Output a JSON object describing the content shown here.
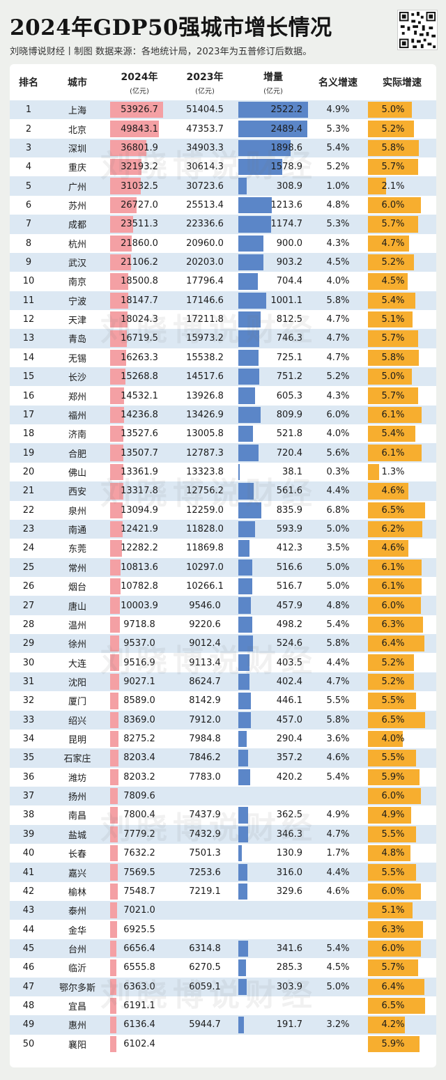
{
  "title": "2024年GDP50强城市增长情况",
  "subtitle": "刘晓博说财经丨制图   数据来源：各地统计局，2023年为五普修订后数据。",
  "watermark_text": "刘晓博说财经",
  "colors": {
    "gdp_bar": "#f4a0a4",
    "increase_bar": "#5b86c8",
    "real_bar": "#f7ae2f",
    "alt_row": "#dce8f3"
  },
  "headers": {
    "rank": "排名",
    "city": "城市",
    "gdp2024": "2024年",
    "gdp2024_unit": "(亿元)",
    "gdp2023": "2023年",
    "gdp2023_unit": "(亿元)",
    "increase": "增量",
    "increase_unit": "(亿元)",
    "nominal": "名义增速",
    "real": "实际增速"
  },
  "chart_data": {
    "type": "table",
    "title": "2024年GDP50强城市增长情况",
    "columns": [
      "排名",
      "城市",
      "2024年(亿元)",
      "2023年(亿元)",
      "增量(亿元)",
      "名义增速",
      "实际增速"
    ],
    "rows": [
      {
        "rank": "1",
        "city": "上海",
        "gdp2024": "53926.7",
        "gdp2023": "51404.5",
        "increase": "2522.2",
        "nominal": "4.9%",
        "real": "5.0%"
      },
      {
        "rank": "2",
        "city": "北京",
        "gdp2024": "49843.1",
        "gdp2023": "47353.7",
        "increase": "2489.4",
        "nominal": "5.3%",
        "real": "5.2%"
      },
      {
        "rank": "3",
        "city": "深圳",
        "gdp2024": "36801.9",
        "gdp2023": "34903.3",
        "increase": "1898.6",
        "nominal": "5.4%",
        "real": "5.8%"
      },
      {
        "rank": "4",
        "city": "重庆",
        "gdp2024": "32193.2",
        "gdp2023": "30614.3",
        "increase": "1578.9",
        "nominal": "5.2%",
        "real": "5.7%"
      },
      {
        "rank": "5",
        "city": "广州",
        "gdp2024": "31032.5",
        "gdp2023": "30723.6",
        "increase": "308.9",
        "nominal": "1.0%",
        "real": "2.1%"
      },
      {
        "rank": "6",
        "city": "苏州",
        "gdp2024": "26727.0",
        "gdp2023": "25513.4",
        "increase": "1213.6",
        "nominal": "4.8%",
        "real": "6.0%"
      },
      {
        "rank": "7",
        "city": "成都",
        "gdp2024": "23511.3",
        "gdp2023": "22336.6",
        "increase": "1174.7",
        "nominal": "5.3%",
        "real": "5.7%"
      },
      {
        "rank": "8",
        "city": "杭州",
        "gdp2024": "21860.0",
        "gdp2023": "20960.0",
        "increase": "900.0",
        "nominal": "4.3%",
        "real": "4.7%"
      },
      {
        "rank": "9",
        "city": "武汉",
        "gdp2024": "21106.2",
        "gdp2023": "20203.0",
        "increase": "903.2",
        "nominal": "4.5%",
        "real": "5.2%"
      },
      {
        "rank": "10",
        "city": "南京",
        "gdp2024": "18500.8",
        "gdp2023": "17796.4",
        "increase": "704.4",
        "nominal": "4.0%",
        "real": "4.5%"
      },
      {
        "rank": "11",
        "city": "宁波",
        "gdp2024": "18147.7",
        "gdp2023": "17146.6",
        "increase": "1001.1",
        "nominal": "5.8%",
        "real": "5.4%"
      },
      {
        "rank": "12",
        "city": "天津",
        "gdp2024": "18024.3",
        "gdp2023": "17211.8",
        "increase": "812.5",
        "nominal": "4.7%",
        "real": "5.1%"
      },
      {
        "rank": "13",
        "city": "青岛",
        "gdp2024": "16719.5",
        "gdp2023": "15973.2",
        "increase": "746.3",
        "nominal": "4.7%",
        "real": "5.7%"
      },
      {
        "rank": "14",
        "city": "无锡",
        "gdp2024": "16263.3",
        "gdp2023": "15538.2",
        "increase": "725.1",
        "nominal": "4.7%",
        "real": "5.8%"
      },
      {
        "rank": "15",
        "city": "长沙",
        "gdp2024": "15268.8",
        "gdp2023": "14517.6",
        "increase": "751.2",
        "nominal": "5.2%",
        "real": "5.0%"
      },
      {
        "rank": "16",
        "city": "郑州",
        "gdp2024": "14532.1",
        "gdp2023": "13926.8",
        "increase": "605.3",
        "nominal": "4.3%",
        "real": "5.7%"
      },
      {
        "rank": "17",
        "city": "福州",
        "gdp2024": "14236.8",
        "gdp2023": "13426.9",
        "increase": "809.9",
        "nominal": "6.0%",
        "real": "6.1%"
      },
      {
        "rank": "18",
        "city": "济南",
        "gdp2024": "13527.6",
        "gdp2023": "13005.8",
        "increase": "521.8",
        "nominal": "4.0%",
        "real": "5.4%"
      },
      {
        "rank": "19",
        "city": "合肥",
        "gdp2024": "13507.7",
        "gdp2023": "12787.3",
        "increase": "720.4",
        "nominal": "5.6%",
        "real": "6.1%"
      },
      {
        "rank": "20",
        "city": "佛山",
        "gdp2024": "13361.9",
        "gdp2023": "13323.8",
        "increase": "38.1",
        "nominal": "0.3%",
        "real": "1.3%"
      },
      {
        "rank": "21",
        "city": "西安",
        "gdp2024": "13317.8",
        "gdp2023": "12756.2",
        "increase": "561.6",
        "nominal": "4.4%",
        "real": "4.6%"
      },
      {
        "rank": "22",
        "city": "泉州",
        "gdp2024": "13094.9",
        "gdp2023": "12259.0",
        "increase": "835.9",
        "nominal": "6.8%",
        "real": "6.5%"
      },
      {
        "rank": "23",
        "city": "南通",
        "gdp2024": "12421.9",
        "gdp2023": "11828.0",
        "increase": "593.9",
        "nominal": "5.0%",
        "real": "6.2%"
      },
      {
        "rank": "24",
        "city": "东莞",
        "gdp2024": "12282.2",
        "gdp2023": "11869.8",
        "increase": "412.3",
        "nominal": "3.5%",
        "real": "4.6%"
      },
      {
        "rank": "25",
        "city": "常州",
        "gdp2024": "10813.6",
        "gdp2023": "10297.0",
        "increase": "516.6",
        "nominal": "5.0%",
        "real": "6.1%"
      },
      {
        "rank": "26",
        "city": "烟台",
        "gdp2024": "10782.8",
        "gdp2023": "10266.1",
        "increase": "516.7",
        "nominal": "5.0%",
        "real": "6.1%"
      },
      {
        "rank": "27",
        "city": "唐山",
        "gdp2024": "10003.9",
        "gdp2023": "9546.0",
        "increase": "457.9",
        "nominal": "4.8%",
        "real": "6.0%"
      },
      {
        "rank": "28",
        "city": "温州",
        "gdp2024": "9718.8",
        "gdp2023": "9220.6",
        "increase": "498.2",
        "nominal": "5.4%",
        "real": "6.3%"
      },
      {
        "rank": "29",
        "city": "徐州",
        "gdp2024": "9537.0",
        "gdp2023": "9012.4",
        "increase": "524.6",
        "nominal": "5.8%",
        "real": "6.4%"
      },
      {
        "rank": "30",
        "city": "大连",
        "gdp2024": "9516.9",
        "gdp2023": "9113.4",
        "increase": "403.5",
        "nominal": "4.4%",
        "real": "5.2%"
      },
      {
        "rank": "31",
        "city": "沈阳",
        "gdp2024": "9027.1",
        "gdp2023": "8624.7",
        "increase": "402.4",
        "nominal": "4.7%",
        "real": "5.2%"
      },
      {
        "rank": "32",
        "city": "厦门",
        "gdp2024": "8589.0",
        "gdp2023": "8142.9",
        "increase": "446.1",
        "nominal": "5.5%",
        "real": "5.5%"
      },
      {
        "rank": "33",
        "city": "绍兴",
        "gdp2024": "8369.0",
        "gdp2023": "7912.0",
        "increase": "457.0",
        "nominal": "5.8%",
        "real": "6.5%"
      },
      {
        "rank": "34",
        "city": "昆明",
        "gdp2024": "8275.2",
        "gdp2023": "7984.8",
        "increase": "290.4",
        "nominal": "3.6%",
        "real": "4.0%"
      },
      {
        "rank": "35",
        "city": "石家庄",
        "gdp2024": "8203.4",
        "gdp2023": "7846.2",
        "increase": "357.2",
        "nominal": "4.6%",
        "real": "5.5%"
      },
      {
        "rank": "36",
        "city": "潍坊",
        "gdp2024": "8203.2",
        "gdp2023": "7783.0",
        "increase": "420.2",
        "nominal": "5.4%",
        "real": "5.9%"
      },
      {
        "rank": "37",
        "city": "扬州",
        "gdp2024": "7809.6",
        "gdp2023": "",
        "increase": "",
        "nominal": "",
        "real": "6.0%"
      },
      {
        "rank": "38",
        "city": "南昌",
        "gdp2024": "7800.4",
        "gdp2023": "7437.9",
        "increase": "362.5",
        "nominal": "4.9%",
        "real": "4.9%"
      },
      {
        "rank": "39",
        "city": "盐城",
        "gdp2024": "7779.2",
        "gdp2023": "7432.9",
        "increase": "346.3",
        "nominal": "4.7%",
        "real": "5.5%"
      },
      {
        "rank": "40",
        "city": "长春",
        "gdp2024": "7632.2",
        "gdp2023": "7501.3",
        "increase": "130.9",
        "nominal": "1.7%",
        "real": "4.8%"
      },
      {
        "rank": "41",
        "city": "嘉兴",
        "gdp2024": "7569.5",
        "gdp2023": "7253.6",
        "increase": "316.0",
        "nominal": "4.4%",
        "real": "5.5%"
      },
      {
        "rank": "42",
        "city": "榆林",
        "gdp2024": "7548.7",
        "gdp2023": "7219.1",
        "increase": "329.6",
        "nominal": "4.6%",
        "real": "6.0%"
      },
      {
        "rank": "43",
        "city": "泰州",
        "gdp2024": "7021.0",
        "gdp2023": "",
        "increase": "",
        "nominal": "",
        "real": "5.1%"
      },
      {
        "rank": "44",
        "city": "金华",
        "gdp2024": "6925.5",
        "gdp2023": "",
        "increase": "",
        "nominal": "",
        "real": "6.3%"
      },
      {
        "rank": "45",
        "city": "台州",
        "gdp2024": "6656.4",
        "gdp2023": "6314.8",
        "increase": "341.6",
        "nominal": "5.4%",
        "real": "6.0%"
      },
      {
        "rank": "46",
        "city": "临沂",
        "gdp2024": "6555.8",
        "gdp2023": "6270.5",
        "increase": "285.3",
        "nominal": "4.5%",
        "real": "5.7%"
      },
      {
        "rank": "47",
        "city": "鄂尔多斯",
        "gdp2024": "6363.0",
        "gdp2023": "6059.1",
        "increase": "303.9",
        "nominal": "5.0%",
        "real": "6.4%"
      },
      {
        "rank": "48",
        "city": "宜昌",
        "gdp2024": "6191.1",
        "gdp2023": "",
        "increase": "",
        "nominal": "",
        "real": "6.5%"
      },
      {
        "rank": "49",
        "city": "惠州",
        "gdp2024": "6136.4",
        "gdp2023": "5944.7",
        "increase": "191.7",
        "nominal": "3.2%",
        "real": "4.2%"
      },
      {
        "rank": "50",
        "city": "襄阳",
        "gdp2024": "6102.4",
        "gdp2023": "",
        "increase": "",
        "nominal": "",
        "real": "5.9%"
      }
    ]
  }
}
